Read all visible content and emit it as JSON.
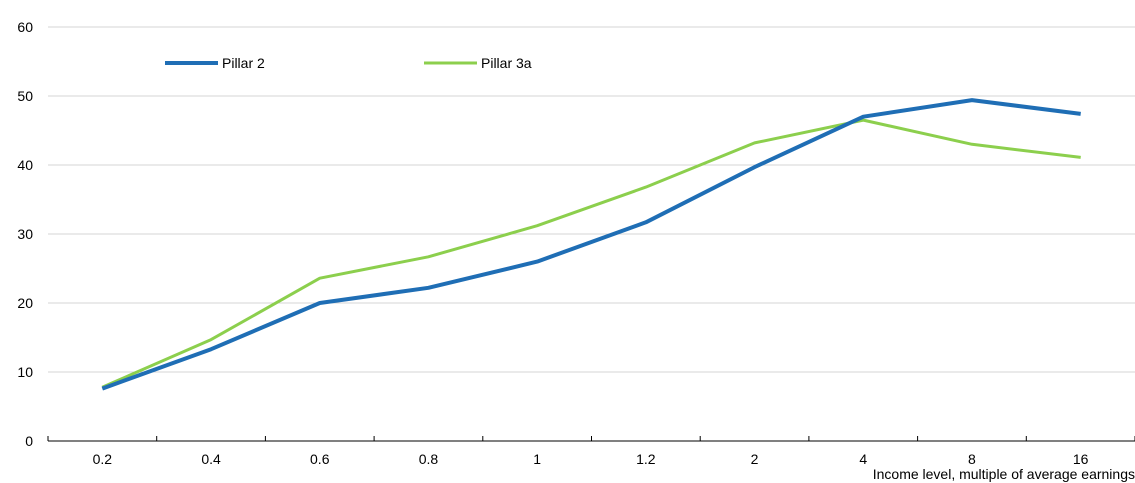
{
  "chart_data": {
    "type": "line",
    "title": "",
    "xlabel": "Income level, multiple of average earnings",
    "ylabel": "",
    "ylim": [
      0,
      60
    ],
    "yticks": [
      0,
      10,
      20,
      30,
      40,
      50,
      60
    ],
    "grid": "horizontal",
    "legend_position": "top-left",
    "categories": [
      "0.2",
      "0.4",
      "0.6",
      "0.8",
      "1",
      "1.2",
      "2",
      "4",
      "8",
      "16"
    ],
    "series": [
      {
        "name": "Pillar 2",
        "color": "#1f6eb5",
        "values": [
          7.6,
          13.3,
          20.0,
          22.2,
          26.0,
          31.7,
          39.7,
          47.0,
          49.4,
          47.4
        ]
      },
      {
        "name": "Pillar 3a",
        "color": "#8ccf4d",
        "values": [
          7.8,
          14.7,
          23.6,
          26.7,
          31.2,
          36.8,
          43.2,
          46.5,
          43.0,
          41.1
        ]
      }
    ]
  }
}
